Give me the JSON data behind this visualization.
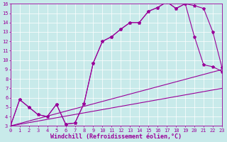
{
  "xlabel": "Windchill (Refroidissement éolien,°C)",
  "bg_color": "#c8eaea",
  "line_color": "#990099",
  "grid_color": "#ffffff",
  "xlim": [
    0,
    23
  ],
  "ylim": [
    3,
    16
  ],
  "xticks": [
    0,
    1,
    2,
    3,
    4,
    5,
    6,
    7,
    8,
    9,
    10,
    11,
    12,
    13,
    14,
    15,
    16,
    17,
    18,
    19,
    20,
    21,
    22,
    23
  ],
  "yticks": [
    3,
    4,
    5,
    6,
    7,
    8,
    9,
    10,
    11,
    12,
    13,
    14,
    15,
    16
  ],
  "line1_x": [
    0,
    1,
    2,
    3,
    4,
    5,
    6,
    7,
    8,
    9,
    10,
    11,
    12,
    13,
    14,
    15,
    16,
    17,
    18,
    19,
    20,
    21,
    22,
    23
  ],
  "line1_y": [
    3.0,
    5.8,
    5.0,
    4.2,
    4.0,
    5.3,
    3.2,
    3.3,
    5.4,
    9.7,
    12.0,
    12.5,
    13.3,
    14.0,
    14.0,
    15.2,
    15.6,
    16.2,
    15.5,
    16.0,
    15.8,
    15.5,
    13.0,
    9.2
  ],
  "line2_x": [
    0,
    1,
    2,
    3,
    4,
    5,
    6,
    7,
    8,
    9,
    10,
    11,
    12,
    13,
    14,
    15,
    16,
    17,
    18,
    19,
    20,
    21,
    22,
    23
  ],
  "line2_y": [
    3.0,
    5.8,
    5.0,
    4.2,
    4.0,
    5.3,
    3.2,
    3.3,
    5.4,
    9.7,
    12.0,
    12.5,
    13.3,
    14.0,
    14.0,
    15.2,
    15.6,
    16.2,
    15.5,
    16.0,
    12.5,
    9.5,
    9.3,
    8.8
  ],
  "line3_x": [
    0,
    23
  ],
  "line3_y": [
    3.0,
    9.0
  ],
  "line4_x": [
    0,
    23
  ],
  "line4_y": [
    3.0,
    7.0
  ],
  "marker": "*",
  "markersize": 3,
  "linewidth": 0.8,
  "tick_label_fontsize": 5.0,
  "xlabel_fontsize": 6.0,
  "axis_label_color": "#990099",
  "tick_color": "#990099"
}
